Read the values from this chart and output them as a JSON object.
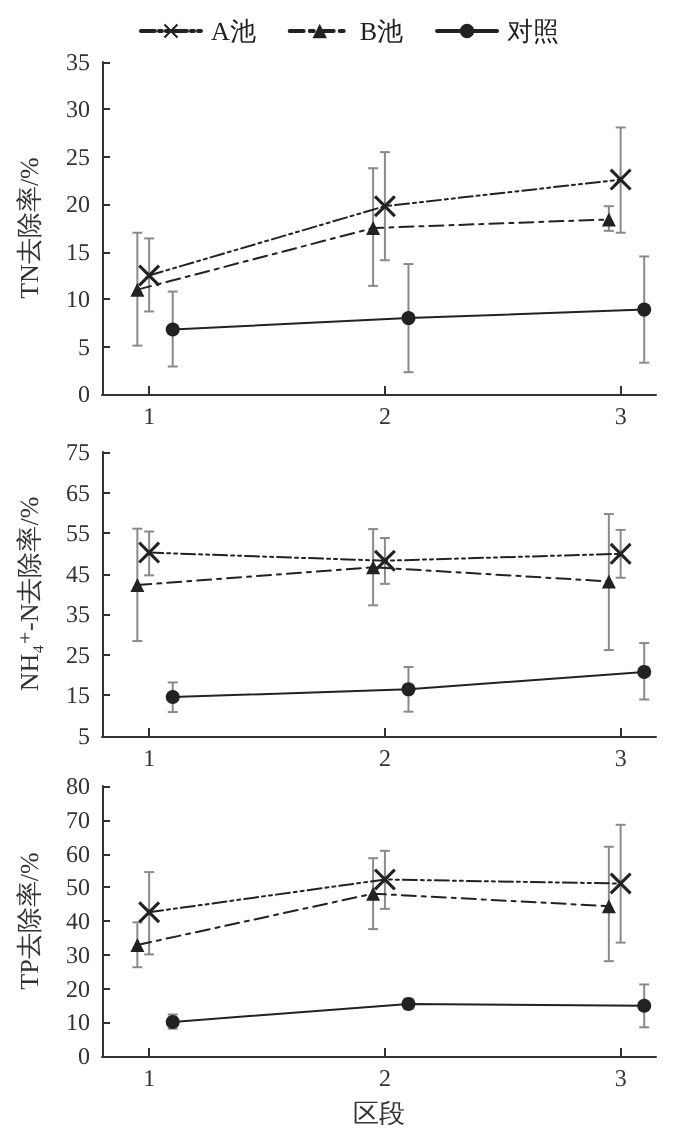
{
  "chart_data": [
    {
      "type": "line",
      "ylabel": "TN去除率/%",
      "xlim": [
        0.8,
        3.15
      ],
      "xticks": [
        1,
        2,
        3
      ],
      "ylim": [
        0,
        35
      ],
      "yticks": [
        0,
        5,
        10,
        15,
        20,
        25,
        30,
        35
      ],
      "legend": "top",
      "series": [
        {
          "name": "A池",
          "color": "#222222",
          "marker": "cross",
          "line_style": "dotted",
          "x": [
            1,
            2,
            3
          ],
          "values": [
            12.5,
            19.8,
            22.6
          ],
          "errors": [
            [
              8.7,
              16.4
            ],
            [
              14.1,
              25.5
            ],
            [
              17,
              28.1
            ]
          ]
        },
        {
          "name": "B池",
          "color": "#222222",
          "marker": "triangle",
          "line_style": "dashed",
          "x": [
            0.95,
            1.95,
            2.95
          ],
          "values": [
            11,
            17.5,
            18.4
          ],
          "errors": [
            [
              5.1,
              17
            ],
            [
              11.4,
              23.8
            ],
            [
              17.2,
              19.8
            ]
          ]
        },
        {
          "name": "对照",
          "color": "#222222",
          "marker": "circle",
          "line_style": "solid",
          "x": [
            1.1,
            2.1,
            3.1
          ],
          "values": [
            6.8,
            8,
            8.9
          ],
          "errors": [
            [
              2.9,
              10.8
            ],
            [
              2.3,
              13.7
            ],
            [
              3.3,
              14.5
            ]
          ]
        }
      ]
    },
    {
      "type": "line",
      "ylabel": "NH₄⁺-N去除率/%",
      "xlim": [
        0.8,
        3.15
      ],
      "xticks": [
        1,
        2,
        3
      ],
      "ylim": [
        5,
        75
      ],
      "yticks": [
        5,
        15,
        25,
        35,
        45,
        55,
        65,
        75
      ],
      "series": [
        {
          "color": "#222222",
          "marker": "cross",
          "line_style": "dotted",
          "x": [
            1,
            2,
            3
          ],
          "values": [
            50.2,
            48.2,
            49.9
          ],
          "errors": [
            [
              44.6,
              55.4
            ],
            [
              42.5,
              53.8
            ],
            [
              44,
              55.8
            ]
          ]
        },
        {
          "color": "#222222",
          "marker": "triangle",
          "line_style": "dashed",
          "x": [
            0.95,
            1.95,
            2.95
          ],
          "values": [
            42.2,
            46.6,
            43.1
          ],
          "errors": [
            [
              28.4,
              56.1
            ],
            [
              37.2,
              56
            ],
            [
              26.2,
              59.7
            ]
          ]
        },
        {
          "color": "#222222",
          "marker": "circle",
          "line_style": "solid",
          "x": [
            1.1,
            2.1,
            3.1
          ],
          "values": [
            14.6,
            16.5,
            20.8
          ],
          "errors": [
            [
              10.9,
              18.2
            ],
            [
              11,
              22
            ],
            [
              14,
              27.9
            ]
          ]
        }
      ]
    },
    {
      "type": "line",
      "ylabel": "TP去除率/%",
      "xlabel": "区段",
      "xlim": [
        0.8,
        3.15
      ],
      "xticks": [
        1,
        2,
        3
      ],
      "ylim": [
        0,
        80
      ],
      "yticks": [
        0,
        10,
        20,
        30,
        40,
        50,
        60,
        70,
        80
      ],
      "series": [
        {
          "color": "#222222",
          "marker": "cross",
          "line_style": "dotted",
          "x": [
            1,
            2,
            3
          ],
          "values": [
            42.6,
            52.3,
            51.1
          ],
          "errors": [
            [
              30.1,
              54.5
            ],
            [
              43.6,
              60.8
            ],
            [
              33.6,
              68.5
            ]
          ]
        },
        {
          "color": "#222222",
          "marker": "triangle",
          "line_style": "dashed",
          "x": [
            0.95,
            1.95,
            2.95
          ],
          "values": [
            32.9,
            48.1,
            44.4
          ],
          "errors": [
            [
              26.3,
              39.6
            ],
            [
              37.6,
              58.6
            ],
            [
              28.1,
              62
            ]
          ]
        },
        {
          "color": "#222222",
          "marker": "circle",
          "line_style": "solid",
          "x": [
            1.1,
            2.1,
            3.1
          ],
          "values": [
            10.1,
            15.4,
            14.9
          ],
          "errors": [
            [
              8.1,
              12.3
            ],
            [
              13.9,
              17
            ],
            [
              8.5,
              21.2
            ]
          ]
        }
      ]
    }
  ]
}
